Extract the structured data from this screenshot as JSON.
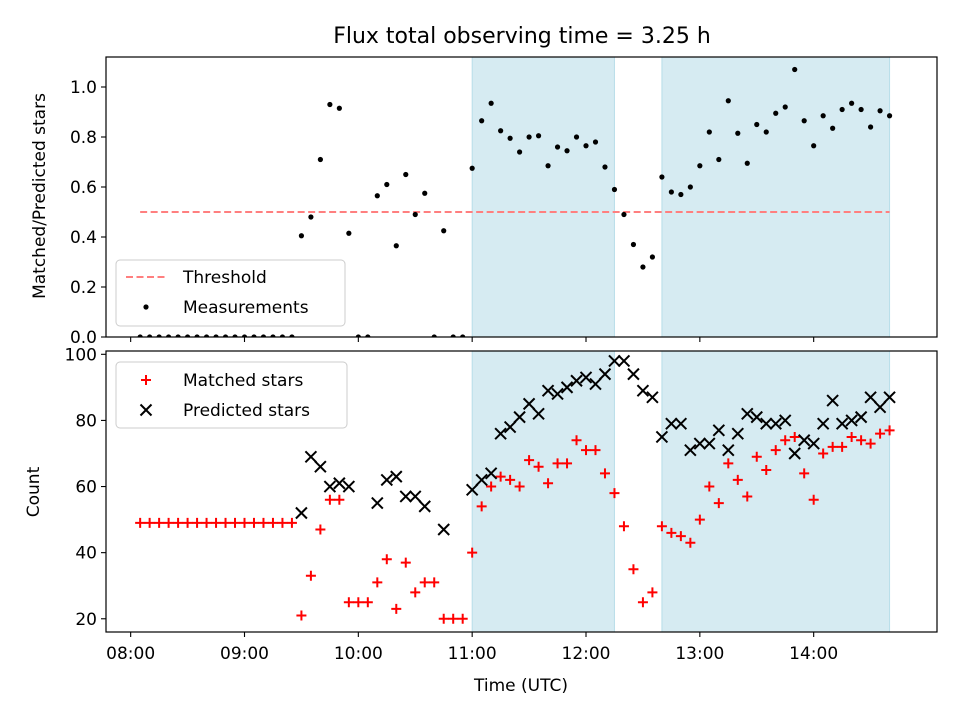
{
  "chart_data": [
    {
      "type": "scatter",
      "title": "Flux total observing time = 3.25 h",
      "xlabel": "",
      "ylabel": "Matched/Predicted stars",
      "ylim": [
        0,
        1.12
      ],
      "yticks": [
        "0.0",
        "0.2",
        "0.4",
        "0.6",
        "0.8",
        "1.0"
      ],
      "xlim": [
        "07:47",
        "15:05"
      ],
      "shaded_intervals": [
        [
          "11:00",
          "12:15"
        ],
        [
          "12:40",
          "14:40"
        ]
      ],
      "threshold": {
        "name": "Threshold",
        "value": 0.5,
        "x_start": "08:05",
        "x_end": "14:40",
        "color": "#ff7f7f"
      },
      "legend_position": "lower left",
      "series": [
        {
          "name": "Measurements",
          "color": "#000000",
          "points": [
            [
              "08:05",
              0
            ],
            [
              "08:10",
              0
            ],
            [
              "08:15",
              0
            ],
            [
              "08:20",
              0
            ],
            [
              "08:25",
              0
            ],
            [
              "08:30",
              0
            ],
            [
              "08:35",
              0
            ],
            [
              "08:40",
              0
            ],
            [
              "08:45",
              0
            ],
            [
              "08:50",
              0
            ],
            [
              "08:55",
              0
            ],
            [
              "09:00",
              0
            ],
            [
              "09:05",
              0
            ],
            [
              "09:10",
              0
            ],
            [
              "09:15",
              0
            ],
            [
              "09:20",
              0
            ],
            [
              "09:25",
              0
            ],
            [
              "09:30",
              0.405
            ],
            [
              "09:35",
              0.48
            ],
            [
              "09:40",
              0.71
            ],
            [
              "09:45",
              0.93
            ],
            [
              "09:50",
              0.915
            ],
            [
              "09:55",
              0.415
            ],
            [
              "10:00",
              0
            ],
            [
              "10:05",
              0
            ],
            [
              "10:10",
              0.565
            ],
            [
              "10:15",
              0.61
            ],
            [
              "10:20",
              0.365
            ],
            [
              "10:25",
              0.65
            ],
            [
              "10:30",
              0.49
            ],
            [
              "10:35",
              0.575
            ],
            [
              "10:40",
              0
            ],
            [
              "10:45",
              0.425
            ],
            [
              "10:50",
              0
            ],
            [
              "10:55",
              0
            ],
            [
              "11:00",
              0.675
            ],
            [
              "11:05",
              0.865
            ],
            [
              "11:10",
              0.935
            ],
            [
              "11:15",
              0.825
            ],
            [
              "11:20",
              0.795
            ],
            [
              "11:25",
              0.74
            ],
            [
              "11:30",
              0.8
            ],
            [
              "11:35",
              0.805
            ],
            [
              "11:40",
              0.685
            ],
            [
              "11:45",
              0.76
            ],
            [
              "11:50",
              0.745
            ],
            [
              "11:55",
              0.8
            ],
            [
              "12:00",
              0.765
            ],
            [
              "12:05",
              0.78
            ],
            [
              "12:10",
              0.68
            ],
            [
              "12:15",
              0.59
            ],
            [
              "12:20",
              0.49
            ],
            [
              "12:25",
              0.37
            ],
            [
              "12:30",
              0.28
            ],
            [
              "12:35",
              0.32
            ],
            [
              "12:40",
              0.64
            ],
            [
              "12:45",
              0.58
            ],
            [
              "12:50",
              0.57
            ],
            [
              "12:55",
              0.6
            ],
            [
              "13:00",
              0.685
            ],
            [
              "13:05",
              0.82
            ],
            [
              "13:10",
              0.71
            ],
            [
              "13:15",
              0.945
            ],
            [
              "13:20",
              0.815
            ],
            [
              "13:25",
              0.695
            ],
            [
              "13:30",
              0.85
            ],
            [
              "13:35",
              0.82
            ],
            [
              "13:40",
              0.895
            ],
            [
              "13:45",
              0.92
            ],
            [
              "13:50",
              1.07
            ],
            [
              "13:55",
              0.865
            ],
            [
              "14:00",
              0.765
            ],
            [
              "14:05",
              0.885
            ],
            [
              "14:10",
              0.835
            ],
            [
              "14:15",
              0.91
            ],
            [
              "14:20",
              0.935
            ],
            [
              "14:25",
              0.91
            ],
            [
              "14:30",
              0.84
            ],
            [
              "14:35",
              0.905
            ],
            [
              "14:40",
              0.885
            ]
          ]
        }
      ]
    },
    {
      "type": "scatter",
      "title": "",
      "xlabel": "Time (UTC)",
      "ylabel": "Count",
      "ylim": [
        16,
        101
      ],
      "yticks": [
        "20",
        "40",
        "60",
        "80",
        "100"
      ],
      "xlim": [
        "07:47",
        "15:05"
      ],
      "xticks": [
        "08:00",
        "09:00",
        "10:00",
        "11:00",
        "12:00",
        "13:00",
        "14:00"
      ],
      "shaded_intervals": [
        [
          "11:00",
          "12:15"
        ],
        [
          "12:40",
          "14:40"
        ]
      ],
      "legend_position": "upper left",
      "series": [
        {
          "name": "Matched stars",
          "color": "#ff0000",
          "marker": "+",
          "points": [
            [
              "08:05",
              49
            ],
            [
              "08:10",
              49
            ],
            [
              "08:15",
              49
            ],
            [
              "08:20",
              49
            ],
            [
              "08:25",
              49
            ],
            [
              "08:30",
              49
            ],
            [
              "08:35",
              49
            ],
            [
              "08:40",
              49
            ],
            [
              "08:45",
              49
            ],
            [
              "08:50",
              49
            ],
            [
              "08:55",
              49
            ],
            [
              "09:00",
              49
            ],
            [
              "09:05",
              49
            ],
            [
              "09:10",
              49
            ],
            [
              "09:15",
              49
            ],
            [
              "09:20",
              49
            ],
            [
              "09:25",
              49
            ],
            [
              "09:30",
              21
            ],
            [
              "09:35",
              33
            ],
            [
              "09:40",
              47
            ],
            [
              "09:45",
              56
            ],
            [
              "09:50",
              56
            ],
            [
              "09:55",
              25
            ],
            [
              "10:00",
              25
            ],
            [
              "10:05",
              25
            ],
            [
              "10:10",
              31
            ],
            [
              "10:15",
              38
            ],
            [
              "10:20",
              23
            ],
            [
              "10:25",
              37
            ],
            [
              "10:30",
              28
            ],
            [
              "10:35",
              31
            ],
            [
              "10:40",
              31
            ],
            [
              "10:45",
              20
            ],
            [
              "10:50",
              20
            ],
            [
              "10:55",
              20
            ],
            [
              "11:00",
              40
            ],
            [
              "11:05",
              54
            ],
            [
              "11:10",
              60
            ],
            [
              "11:15",
              63
            ],
            [
              "11:20",
              62
            ],
            [
              "11:25",
              60
            ],
            [
              "11:30",
              68
            ],
            [
              "11:35",
              66
            ],
            [
              "11:40",
              61
            ],
            [
              "11:45",
              67
            ],
            [
              "11:50",
              67
            ],
            [
              "11:55",
              74
            ],
            [
              "12:00",
              71
            ],
            [
              "12:05",
              71
            ],
            [
              "12:10",
              64
            ],
            [
              "12:15",
              58
            ],
            [
              "12:20",
              48
            ],
            [
              "12:25",
              35
            ],
            [
              "12:30",
              25
            ],
            [
              "12:35",
              28
            ],
            [
              "12:40",
              48
            ],
            [
              "12:45",
              46
            ],
            [
              "12:50",
              45
            ],
            [
              "12:55",
              43
            ],
            [
              "13:00",
              50
            ],
            [
              "13:05",
              60
            ],
            [
              "13:10",
              55
            ],
            [
              "13:15",
              67
            ],
            [
              "13:20",
              62
            ],
            [
              "13:25",
              57
            ],
            [
              "13:30",
              69
            ],
            [
              "13:35",
              65
            ],
            [
              "13:40",
              71
            ],
            [
              "13:45",
              74
            ],
            [
              "13:50",
              75
            ],
            [
              "13:55",
              64
            ],
            [
              "14:00",
              56
            ],
            [
              "14:05",
              70
            ],
            [
              "14:10",
              72
            ],
            [
              "14:15",
              72
            ],
            [
              "14:20",
              75
            ],
            [
              "14:25",
              74
            ],
            [
              "14:30",
              73
            ],
            [
              "14:35",
              76
            ],
            [
              "14:40",
              77
            ]
          ]
        },
        {
          "name": "Predicted stars",
          "color": "#000000",
          "marker": "x",
          "points": [
            [
              "09:30",
              52
            ],
            [
              "09:35",
              69
            ],
            [
              "09:40",
              66
            ],
            [
              "09:45",
              60
            ],
            [
              "09:50",
              61
            ],
            [
              "09:55",
              60
            ],
            [
              "10:10",
              55
            ],
            [
              "10:15",
              62
            ],
            [
              "10:20",
              63
            ],
            [
              "10:25",
              57
            ],
            [
              "10:30",
              57
            ],
            [
              "10:35",
              54
            ],
            [
              "10:45",
              47
            ],
            [
              "11:00",
              59
            ],
            [
              "11:05",
              62
            ],
            [
              "11:10",
              64
            ],
            [
              "11:15",
              76
            ],
            [
              "11:20",
              78
            ],
            [
              "11:25",
              81
            ],
            [
              "11:30",
              85
            ],
            [
              "11:35",
              82
            ],
            [
              "11:40",
              89
            ],
            [
              "11:45",
              88
            ],
            [
              "11:50",
              90
            ],
            [
              "11:55",
              92
            ],
            [
              "12:00",
              93
            ],
            [
              "12:05",
              91
            ],
            [
              "12:10",
              94
            ],
            [
              "12:15",
              98
            ],
            [
              "12:20",
              98
            ],
            [
              "12:25",
              94
            ],
            [
              "12:30",
              89
            ],
            [
              "12:35",
              87
            ],
            [
              "12:40",
              75
            ],
            [
              "12:45",
              79
            ],
            [
              "12:50",
              79
            ],
            [
              "12:55",
              71
            ],
            [
              "13:00",
              73
            ],
            [
              "13:05",
              73
            ],
            [
              "13:10",
              77
            ],
            [
              "13:15",
              71
            ],
            [
              "13:20",
              76
            ],
            [
              "13:25",
              82
            ],
            [
              "13:30",
              81
            ],
            [
              "13:35",
              79
            ],
            [
              "13:40",
              79
            ],
            [
              "13:45",
              80
            ],
            [
              "13:50",
              70
            ],
            [
              "13:55",
              74
            ],
            [
              "14:00",
              73
            ],
            [
              "14:05",
              79
            ],
            [
              "14:10",
              86
            ],
            [
              "14:15",
              79
            ],
            [
              "14:20",
              80
            ],
            [
              "14:25",
              81
            ],
            [
              "14:30",
              87
            ],
            [
              "14:35",
              84
            ],
            [
              "14:40",
              87
            ]
          ]
        }
      ]
    }
  ]
}
